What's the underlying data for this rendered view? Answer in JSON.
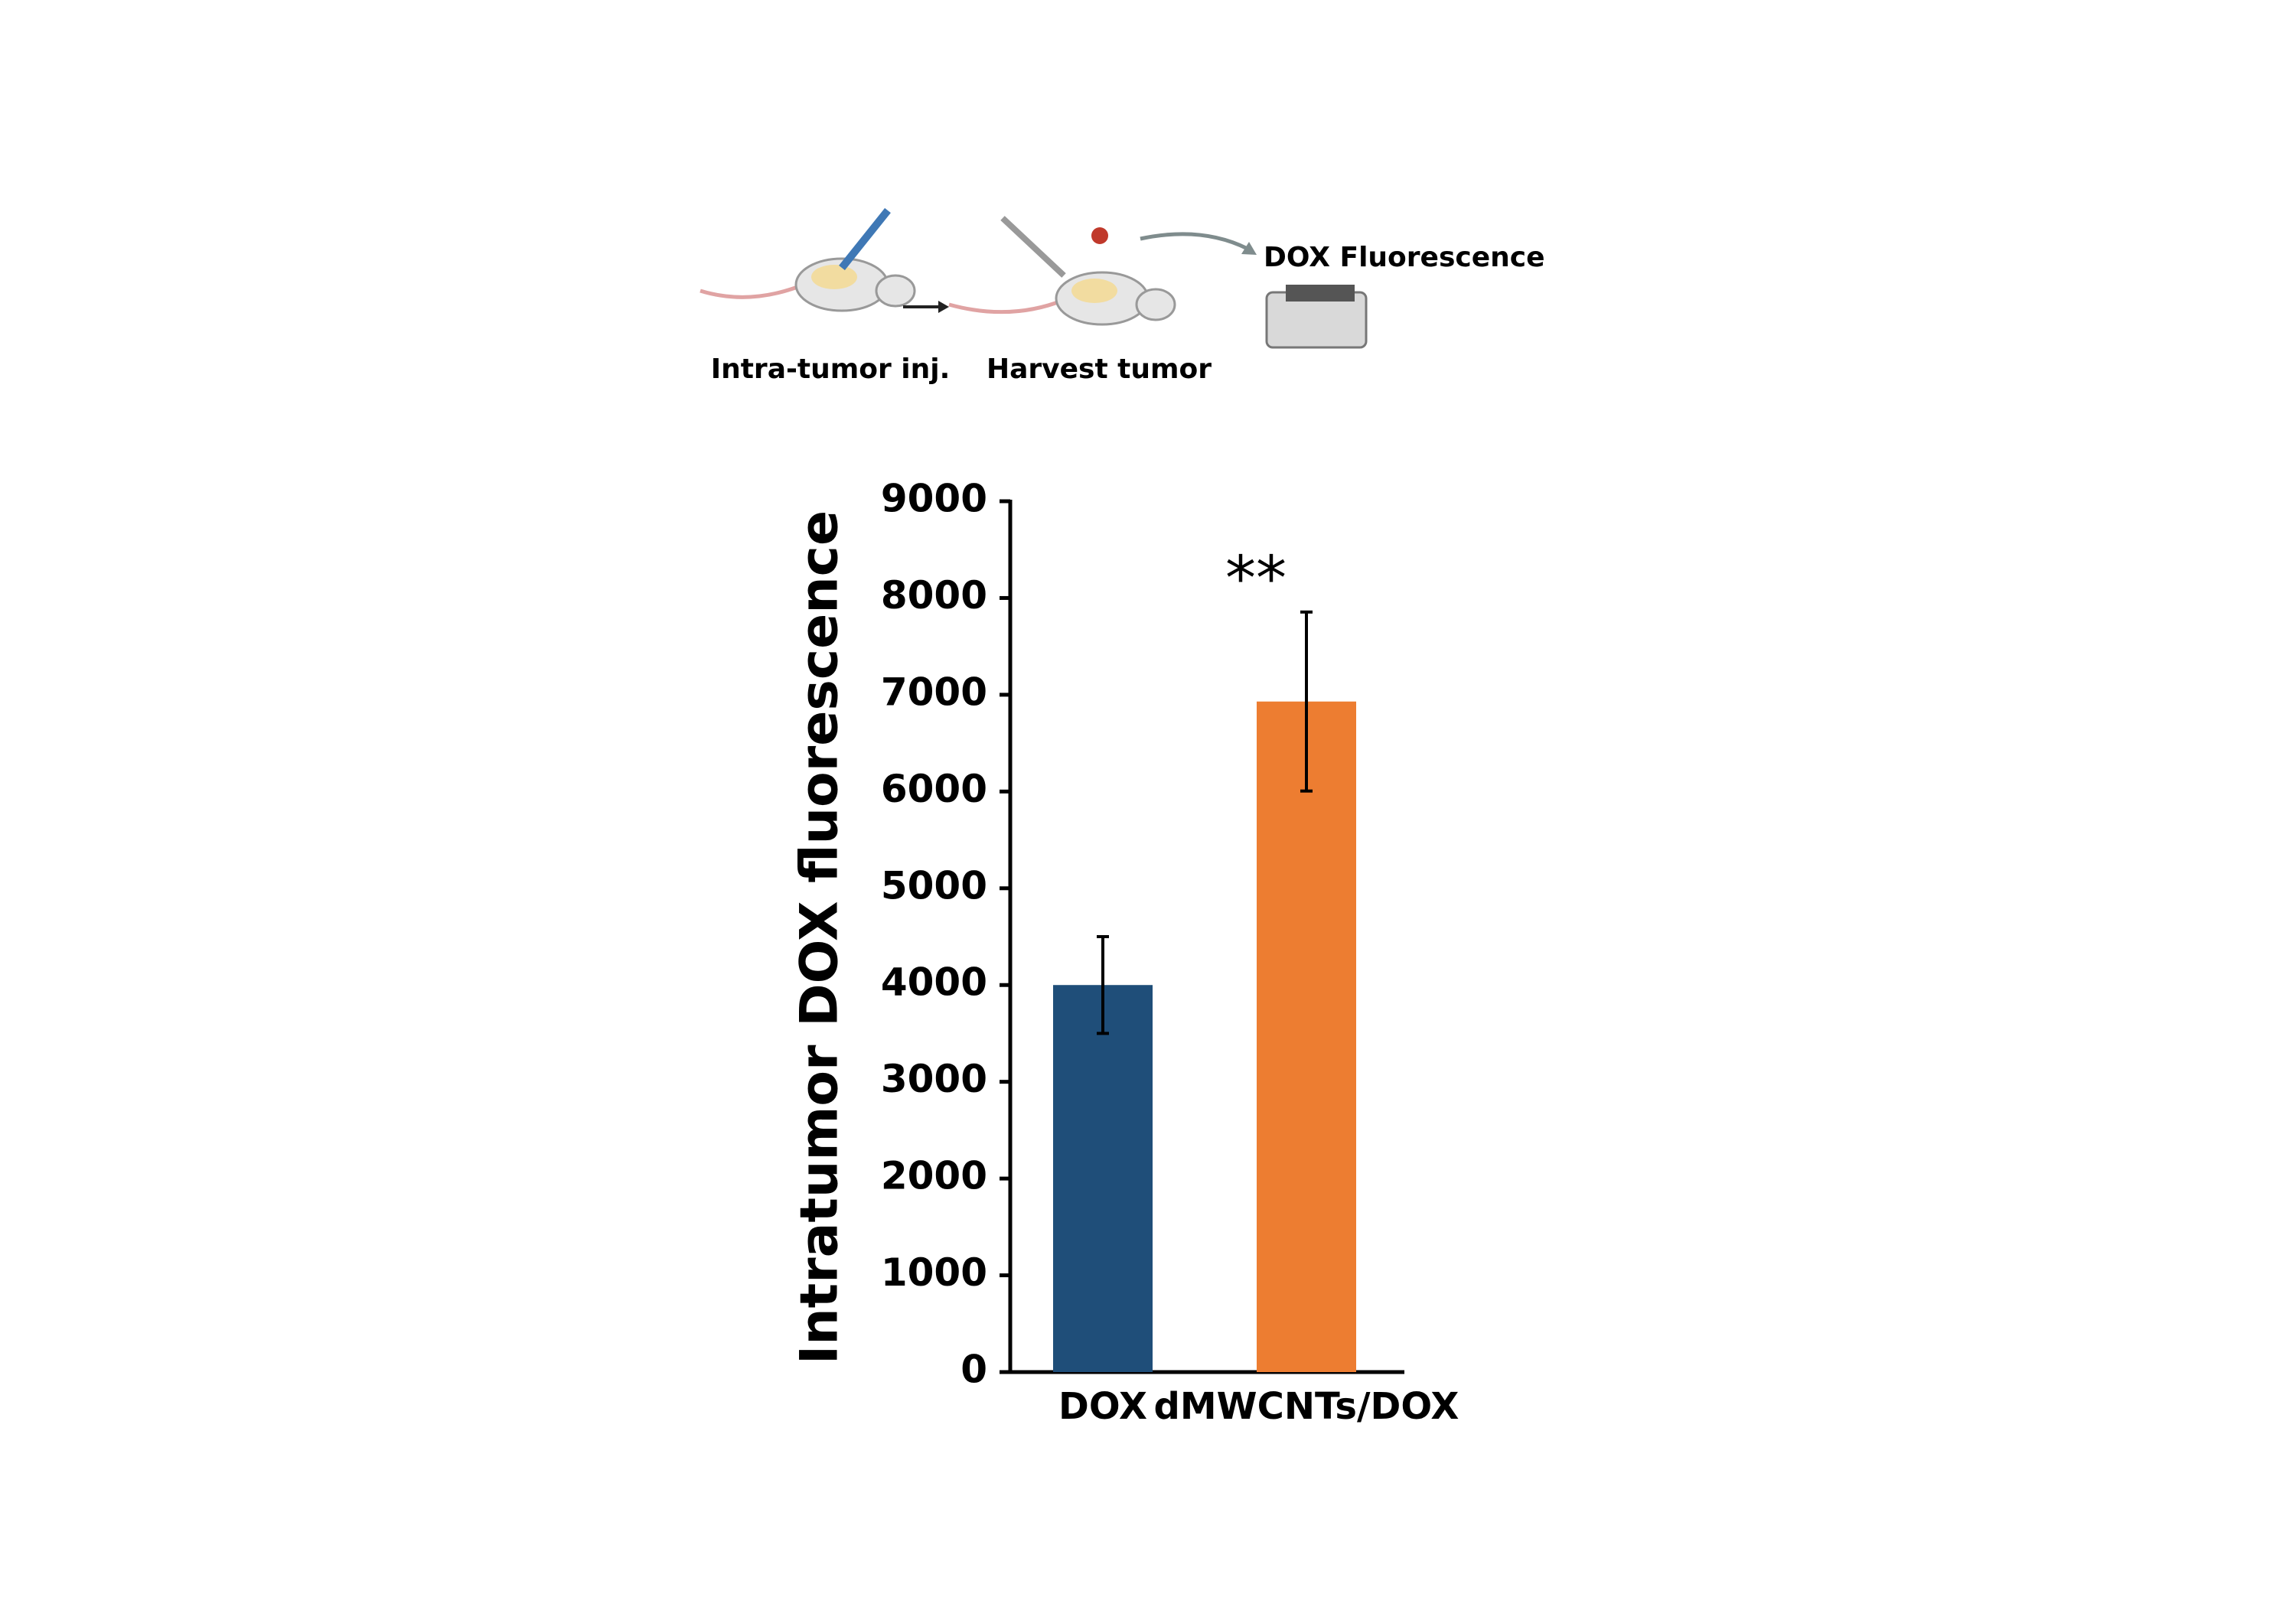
{
  "diagram": {
    "step_labels": [
      "Intra-tumor inj.",
      "Harvest tumor"
    ],
    "readout_label": "DOX Fluorescence"
  },
  "chart_data": {
    "type": "bar",
    "y_label": "Intratumor DOX fluorescence",
    "categories": [
      "DOX",
      "dMWCNTs/DOX"
    ],
    "values": [
      4000,
      6930
    ],
    "errors": [
      500,
      925
    ],
    "colors": [
      "#1f4e79",
      "#ed7d31"
    ],
    "annotation": "**",
    "ylim": [
      0,
      9000
    ],
    "yticks": [
      0,
      1000,
      2000,
      3000,
      4000,
      5000,
      6000,
      7000,
      8000,
      9000
    ]
  }
}
